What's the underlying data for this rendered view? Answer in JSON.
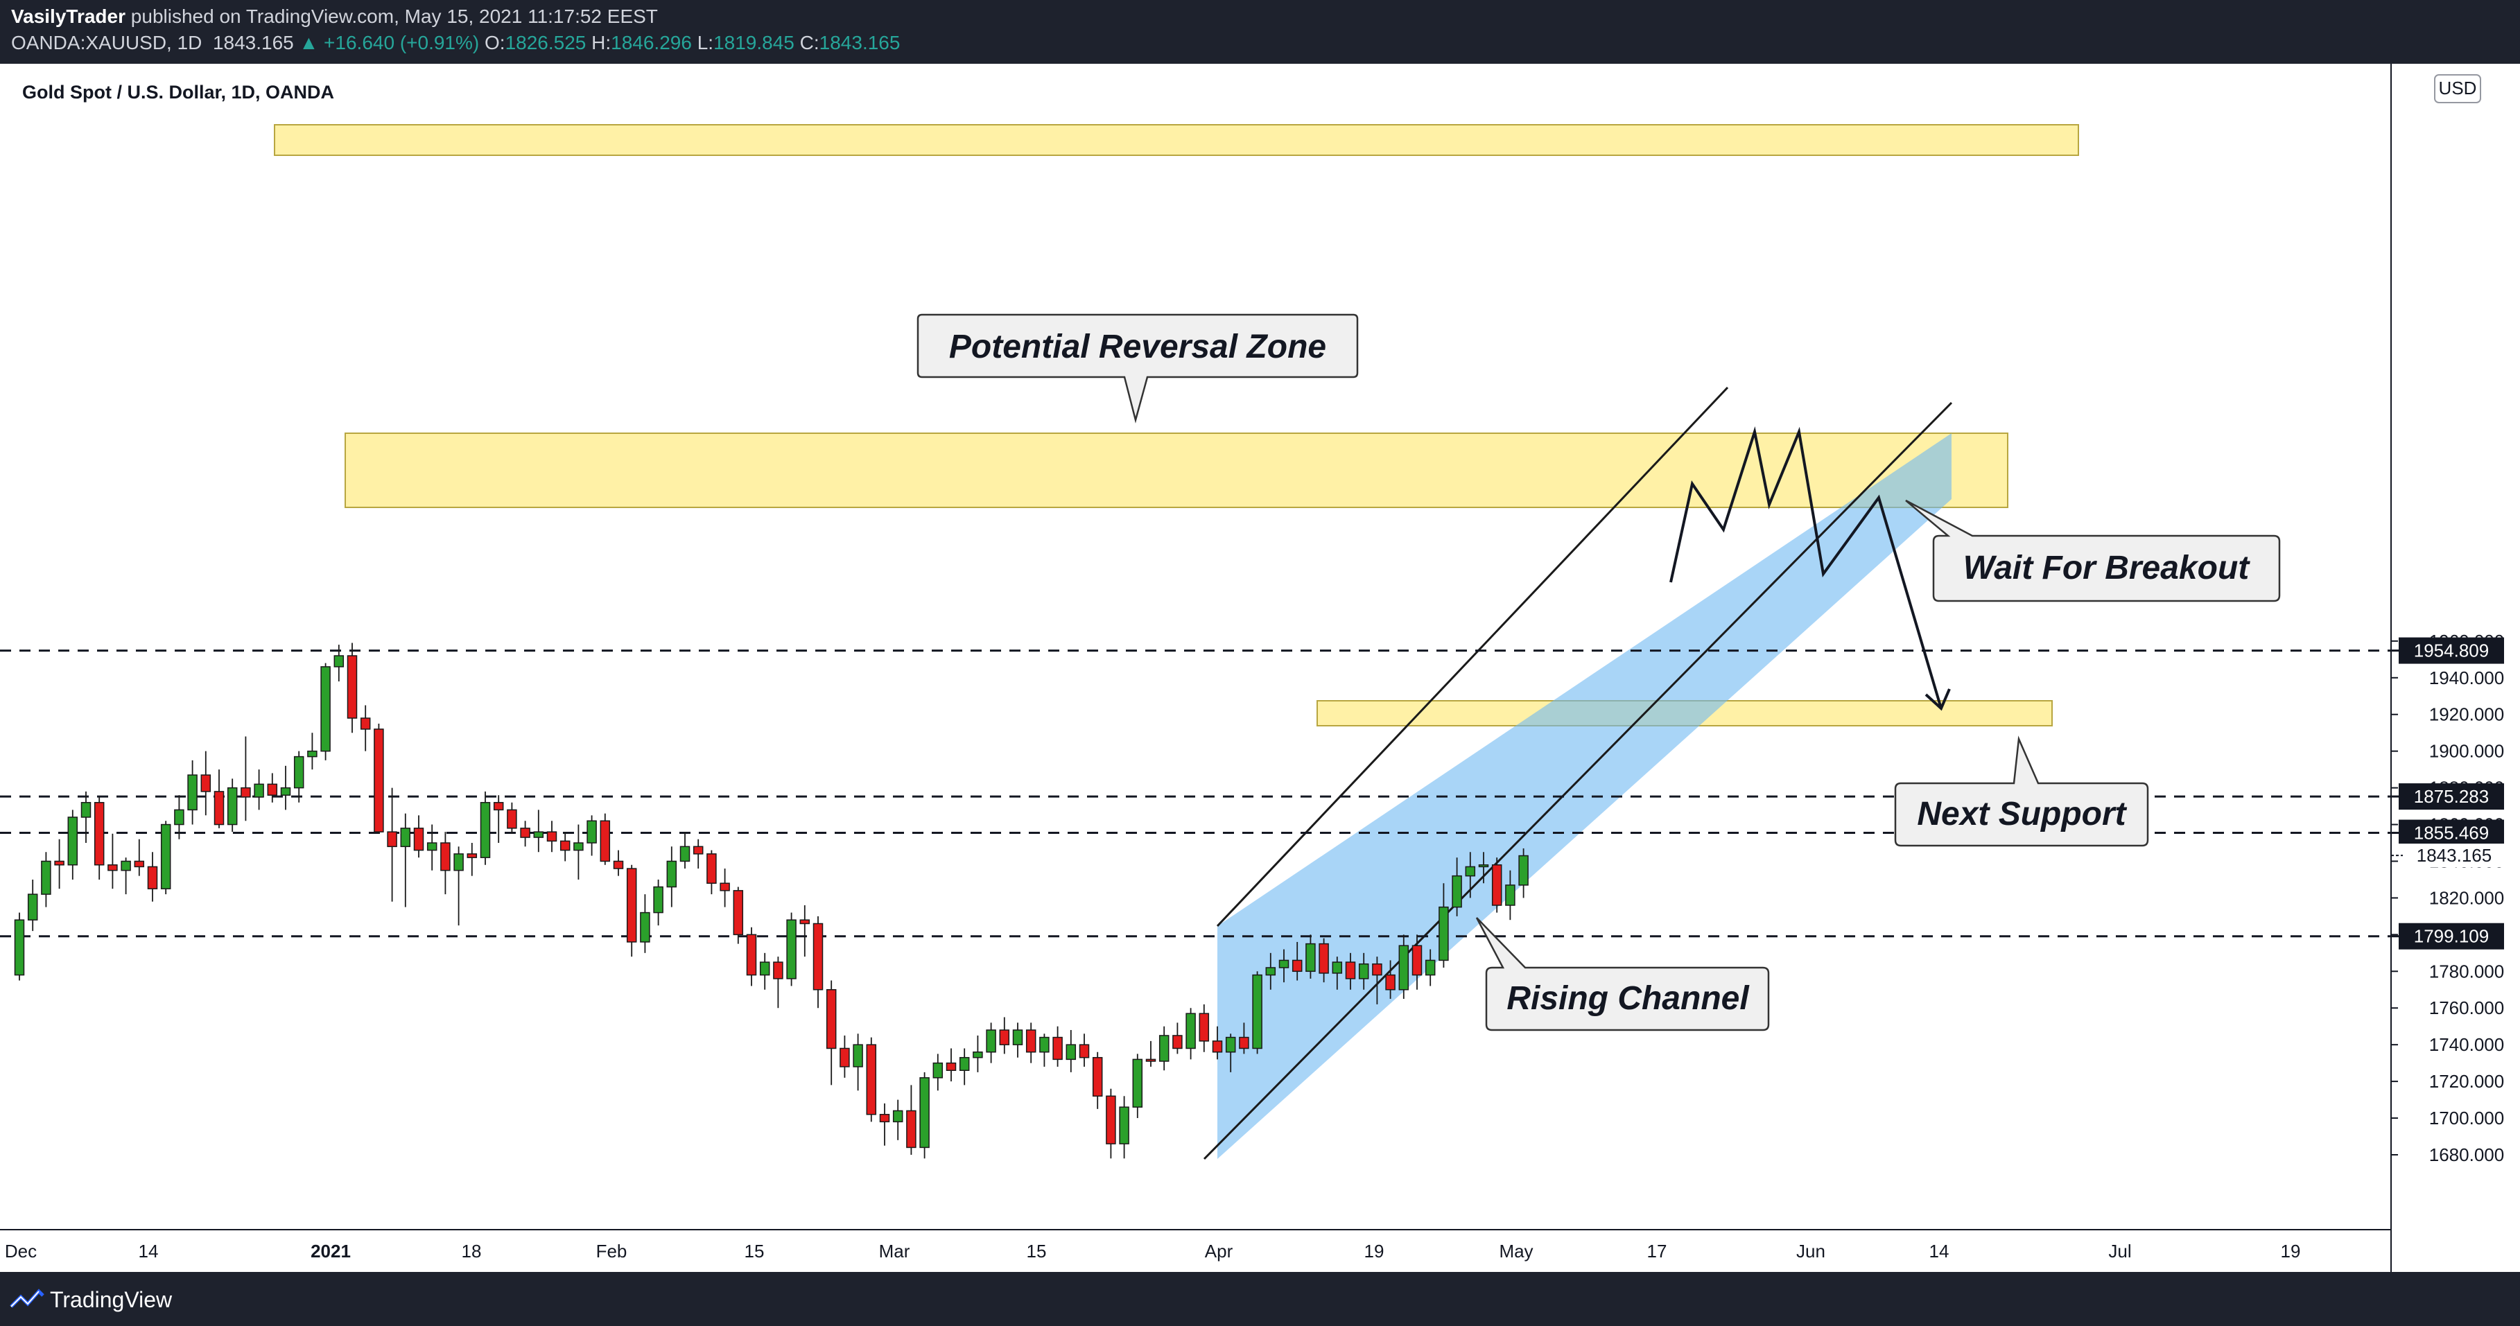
{
  "header": {
    "publisher": "VasilyTrader",
    "published_text": "published on TradingView.com, May 15, 2021 11:17:52 EEST",
    "symbol": "OANDA:XAUUSD, 1D",
    "last": "1843.165",
    "change": "+16.640 (+0.91%)",
    "o_label": "O:",
    "o_value": "1826.525",
    "h_label": "H:",
    "h_value": "1846.296",
    "l_label": "L:",
    "l_value": "1819.845",
    "c_label": "C:",
    "c_value": "1843.165"
  },
  "legend_title": "Gold Spot / U.S. Dollar, 1D, OANDA",
  "currency_badge": "USD",
  "footer": {
    "brand": "TradingView"
  },
  "colors": {
    "up": "#2ba02b",
    "down": "#e41c1c",
    "zone": "#fff1a6",
    "channel": "#9fd1f8"
  },
  "chart_data": {
    "type": "candlestick",
    "title": "Gold Spot / U.S. Dollar, 1D, OANDA",
    "ylim": [
      1670,
      1968
    ],
    "y_ticks": [
      1680,
      1700,
      1720,
      1740,
      1760,
      1780,
      1800,
      1820,
      1840,
      1860,
      1880,
      1900,
      1920,
      1940,
      1960
    ],
    "x_ticks": [
      "Dec",
      "14",
      "2021",
      "18",
      "Feb",
      "15",
      "Mar",
      "15",
      "Apr",
      "19",
      "May",
      "17",
      "Jun",
      "14",
      "Jul",
      "19"
    ],
    "price_labels": [
      "1954.809",
      "1875.283",
      "1855.469",
      "1843.165",
      "1799.109"
    ],
    "levels": [
      1954.809,
      1875.283,
      1855.469,
      1799.109
    ],
    "last_price": 1843.165,
    "candles": [
      [
        1778,
        1812,
        1775,
        1808
      ],
      [
        1808,
        1830,
        1802,
        1822
      ],
      [
        1822,
        1845,
        1815,
        1840
      ],
      [
        1840,
        1852,
        1825,
        1838
      ],
      [
        1838,
        1868,
        1830,
        1864
      ],
      [
        1864,
        1878,
        1850,
        1872
      ],
      [
        1872,
        1875,
        1830,
        1838
      ],
      [
        1838,
        1855,
        1825,
        1835
      ],
      [
        1835,
        1842,
        1822,
        1840
      ],
      [
        1840,
        1852,
        1832,
        1837
      ],
      [
        1837,
        1845,
        1818,
        1825
      ],
      [
        1825,
        1862,
        1822,
        1860
      ],
      [
        1860,
        1876,
        1852,
        1868
      ],
      [
        1868,
        1895,
        1860,
        1887
      ],
      [
        1887,
        1900,
        1865,
        1878
      ],
      [
        1878,
        1890,
        1858,
        1860
      ],
      [
        1860,
        1885,
        1856,
        1880
      ],
      [
        1880,
        1908,
        1862,
        1875
      ],
      [
        1875,
        1890,
        1868,
        1882
      ],
      [
        1882,
        1888,
        1872,
        1876
      ],
      [
        1876,
        1892,
        1868,
        1880
      ],
      [
        1880,
        1900,
        1872,
        1897
      ],
      [
        1897,
        1910,
        1890,
        1900
      ],
      [
        1900,
        1948,
        1895,
        1946
      ],
      [
        1946,
        1958,
        1938,
        1952
      ],
      [
        1952,
        1959,
        1910,
        1918
      ],
      [
        1918,
        1925,
        1900,
        1912
      ],
      [
        1912,
        1915,
        1855,
        1856
      ],
      [
        1856,
        1880,
        1818,
        1848
      ],
      [
        1848,
        1866,
        1815,
        1858
      ],
      [
        1858,
        1865,
        1842,
        1846
      ],
      [
        1846,
        1860,
        1835,
        1850
      ],
      [
        1850,
        1856,
        1822,
        1835
      ],
      [
        1835,
        1848,
        1805,
        1844
      ],
      [
        1844,
        1850,
        1832,
        1842
      ],
      [
        1842,
        1878,
        1838,
        1872
      ],
      [
        1872,
        1876,
        1850,
        1868
      ],
      [
        1868,
        1872,
        1855,
        1858
      ],
      [
        1858,
        1862,
        1848,
        1853
      ],
      [
        1853,
        1868,
        1845,
        1856
      ],
      [
        1856,
        1862,
        1845,
        1851
      ],
      [
        1851,
        1856,
        1840,
        1846
      ],
      [
        1846,
        1860,
        1830,
        1850
      ],
      [
        1850,
        1865,
        1843,
        1862
      ],
      [
        1862,
        1866,
        1838,
        1840
      ],
      [
        1840,
        1846,
        1832,
        1836
      ],
      [
        1836,
        1838,
        1788,
        1796
      ],
      [
        1796,
        1822,
        1790,
        1812
      ],
      [
        1812,
        1830,
        1805,
        1826
      ],
      [
        1826,
        1848,
        1815,
        1840
      ],
      [
        1840,
        1856,
        1836,
        1848
      ],
      [
        1848,
        1852,
        1836,
        1844
      ],
      [
        1844,
        1846,
        1822,
        1828
      ],
      [
        1828,
        1836,
        1815,
        1824
      ],
      [
        1824,
        1826,
        1795,
        1800
      ],
      [
        1800,
        1804,
        1772,
        1778
      ],
      [
        1778,
        1790,
        1770,
        1785
      ],
      [
        1785,
        1788,
        1760,
        1776
      ],
      [
        1776,
        1812,
        1772,
        1808
      ],
      [
        1808,
        1816,
        1788,
        1806
      ],
      [
        1806,
        1810,
        1760,
        1770
      ],
      [
        1770,
        1775,
        1718,
        1738
      ],
      [
        1738,
        1745,
        1722,
        1728
      ],
      [
        1728,
        1746,
        1715,
        1740
      ],
      [
        1740,
        1744,
        1698,
        1702
      ],
      [
        1702,
        1708,
        1685,
        1698
      ],
      [
        1698,
        1710,
        1688,
        1704
      ],
      [
        1704,
        1718,
        1680,
        1684
      ],
      [
        1684,
        1725,
        1678,
        1722
      ],
      [
        1722,
        1735,
        1715,
        1730
      ],
      [
        1730,
        1738,
        1720,
        1726
      ],
      [
        1726,
        1738,
        1718,
        1733
      ],
      [
        1733,
        1745,
        1725,
        1736
      ],
      [
        1736,
        1752,
        1730,
        1748
      ],
      [
        1748,
        1755,
        1735,
        1740
      ],
      [
        1740,
        1752,
        1733,
        1748
      ],
      [
        1748,
        1752,
        1730,
        1736
      ],
      [
        1736,
        1746,
        1728,
        1744
      ],
      [
        1744,
        1750,
        1728,
        1732
      ],
      [
        1732,
        1748,
        1725,
        1740
      ],
      [
        1740,
        1746,
        1728,
        1733
      ],
      [
        1733,
        1736,
        1705,
        1712
      ],
      [
        1712,
        1716,
        1678,
        1686
      ],
      [
        1686,
        1712,
        1678,
        1706
      ],
      [
        1706,
        1735,
        1700,
        1732
      ],
      [
        1732,
        1742,
        1728,
        1731
      ],
      [
        1731,
        1750,
        1726,
        1745
      ],
      [
        1745,
        1752,
        1735,
        1738
      ],
      [
        1738,
        1760,
        1732,
        1757
      ],
      [
        1757,
        1762,
        1736,
        1742
      ],
      [
        1742,
        1750,
        1732,
        1736
      ],
      [
        1736,
        1746,
        1725,
        1744
      ],
      [
        1744,
        1752,
        1735,
        1738
      ],
      [
        1738,
        1780,
        1735,
        1778
      ],
      [
        1778,
        1790,
        1770,
        1782
      ],
      [
        1782,
        1792,
        1774,
        1786
      ],
      [
        1786,
        1796,
        1775,
        1780
      ],
      [
        1780,
        1800,
        1776,
        1795
      ],
      [
        1795,
        1798,
        1774,
        1779
      ],
      [
        1779,
        1788,
        1770,
        1785
      ],
      [
        1785,
        1790,
        1770,
        1776
      ],
      [
        1776,
        1790,
        1770,
        1784
      ],
      [
        1784,
        1788,
        1762,
        1778
      ],
      [
        1778,
        1786,
        1765,
        1770
      ],
      [
        1770,
        1800,
        1765,
        1794
      ],
      [
        1794,
        1800,
        1770,
        1778
      ],
      [
        1778,
        1792,
        1772,
        1786
      ],
      [
        1786,
        1828,
        1782,
        1815
      ],
      [
        1815,
        1842,
        1810,
        1832
      ],
      [
        1832,
        1845,
        1820,
        1837
      ],
      [
        1837,
        1845,
        1828,
        1838
      ],
      [
        1838,
        1842,
        1812,
        1816
      ],
      [
        1816,
        1835,
        1808,
        1827
      ],
      [
        1827,
        1847,
        1820,
        1843
      ]
    ],
    "annotations": [
      "Potential Reversal Zone",
      "Wait For Breakout",
      "Next Support",
      "Rising Channel"
    ]
  }
}
